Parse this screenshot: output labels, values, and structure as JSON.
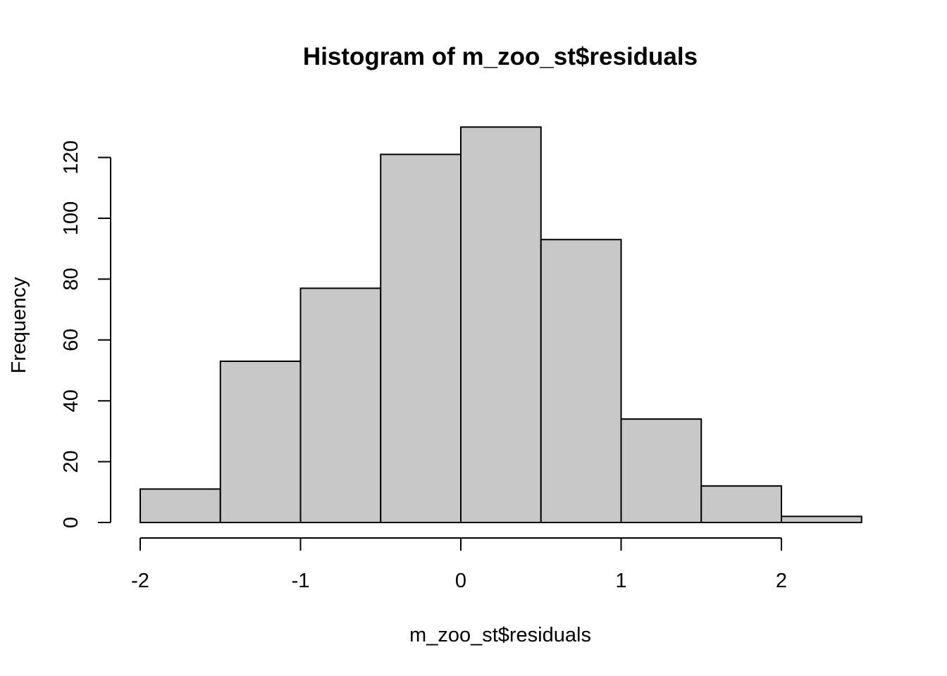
{
  "chart_data": {
    "type": "bar",
    "subtype": "histogram",
    "title": "Histogram of m_zoo_st$residuals",
    "xlabel": "m_zoo_st$residuals",
    "ylabel": "Frequency",
    "bin_edges": [
      -2,
      -1.5,
      -1,
      -0.5,
      0,
      0.5,
      1,
      1.5,
      2,
      2.5
    ],
    "values": [
      11,
      53,
      77,
      121,
      130,
      93,
      34,
      12,
      2
    ],
    "x_ticks": [
      -2,
      -1,
      0,
      1,
      2
    ],
    "y_ticks": [
      0,
      20,
      40,
      60,
      80,
      100,
      120
    ],
    "xlim": [
      -2,
      2.5
    ],
    "ylim": [
      0,
      130
    ],
    "bar_color": "#c8c8c8",
    "edge_color": "#000000",
    "grid": false,
    "legend": "none"
  }
}
